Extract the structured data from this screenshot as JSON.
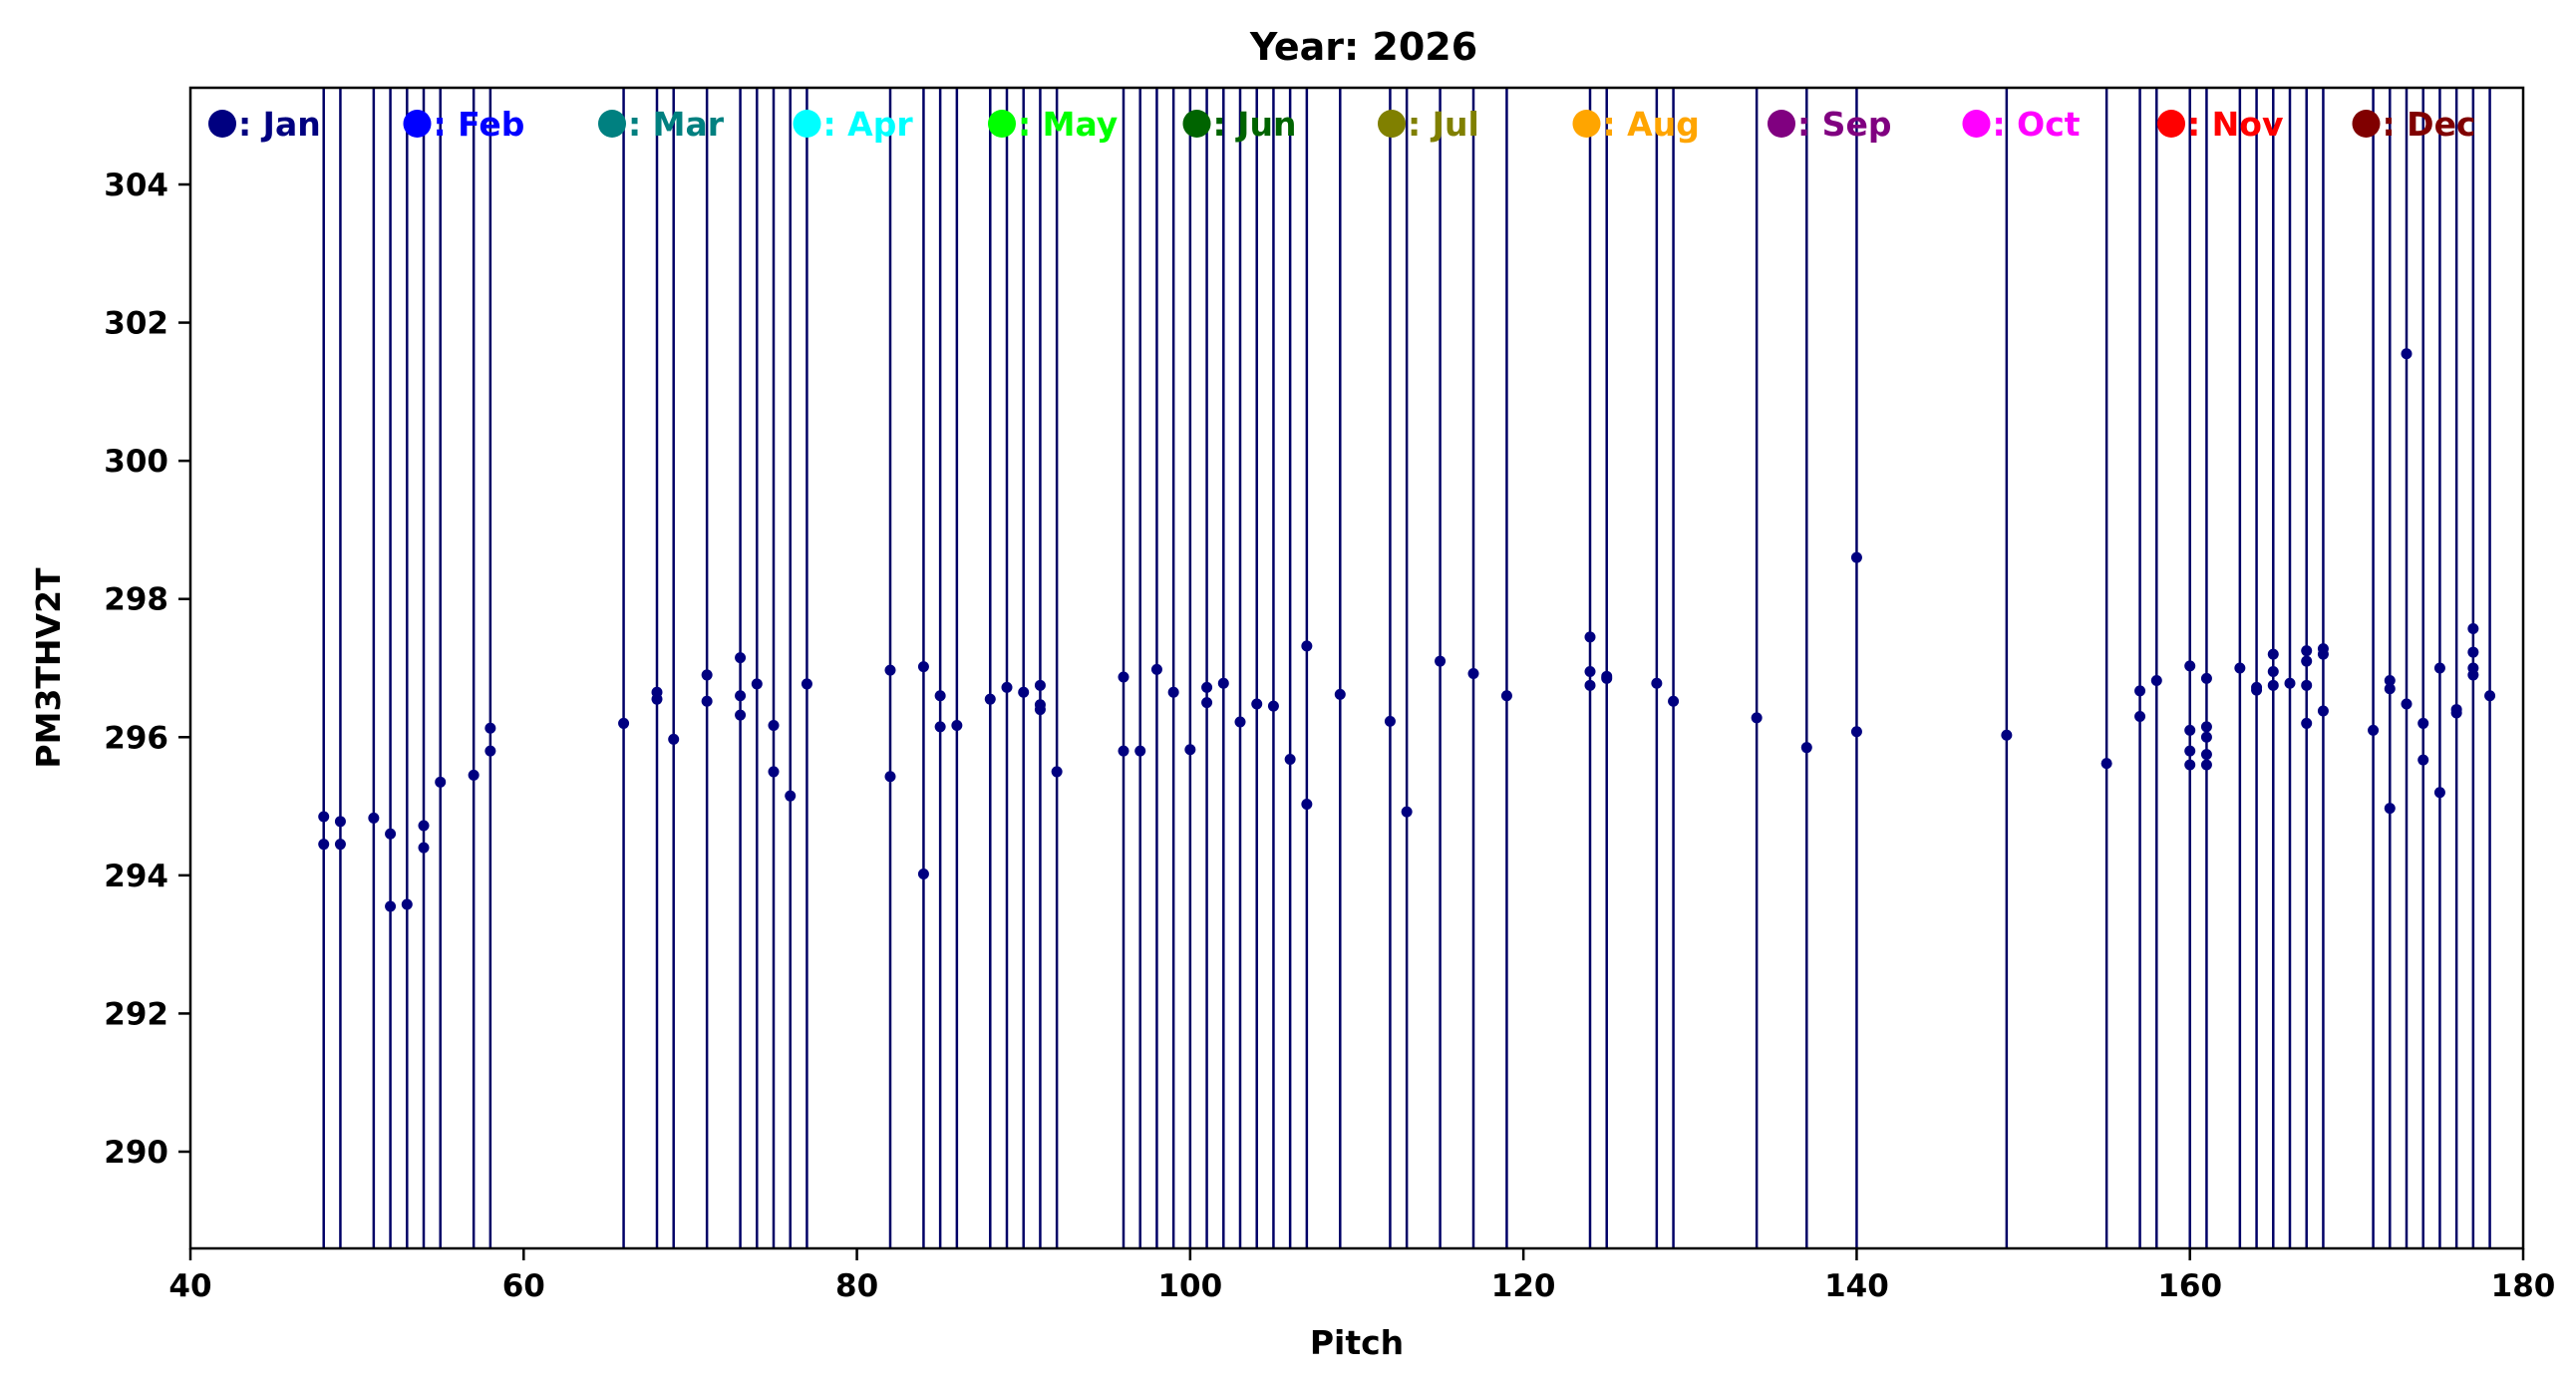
{
  "chart_data": {
    "type": "scatter",
    "title": "Year: 2026",
    "xlabel": "Pitch",
    "ylabel": "PM3THV2T",
    "xlim": [
      40,
      180
    ],
    "ylim": [
      288.6,
      305.4
    ],
    "xticks": [
      40,
      60,
      80,
      100,
      120,
      140,
      160,
      180
    ],
    "yticks": [
      290,
      292,
      294,
      296,
      298,
      300,
      302,
      304
    ],
    "grid": false,
    "legend_placement": "top, horizontal",
    "line_color": "#000066",
    "point_color": "#000080",
    "legend": [
      {
        "label": "Jan",
        "color": "#000080"
      },
      {
        "label": "Feb",
        "color": "#0000ff"
      },
      {
        "label": "Mar",
        "color": "#008080"
      },
      {
        "label": "Apr",
        "color": "#00ffff"
      },
      {
        "label": "May",
        "color": "#00ff00"
      },
      {
        "label": "Jun",
        "color": "#006400"
      },
      {
        "label": "Jul",
        "color": "#808000"
      },
      {
        "label": "Aug",
        "color": "#ffa500"
      },
      {
        "label": "Sep",
        "color": "#800080"
      },
      {
        "label": "Oct",
        "color": "#ff00ff"
      },
      {
        "label": "Nov",
        "color": "#ff0000"
      },
      {
        "label": "Dec",
        "color": "#800000"
      }
    ],
    "vertical_lines_x": [
      48,
      49,
      51,
      52,
      53,
      54,
      55,
      57,
      58,
      66,
      68,
      69,
      71,
      73,
      74,
      75,
      76,
      77,
      82,
      84,
      85,
      86,
      88,
      89,
      90,
      91,
      92,
      96,
      97,
      98,
      99,
      100,
      101,
      102,
      103,
      104,
      105,
      106,
      107,
      109,
      112,
      113,
      115,
      117,
      119,
      124,
      125,
      128,
      129,
      134,
      137,
      140,
      149,
      155,
      157,
      158,
      160,
      161,
      163,
      164,
      165,
      166,
      167,
      168,
      171,
      172,
      173,
      174,
      175,
      176,
      177,
      178
    ],
    "series": [
      {
        "month": "Jan",
        "x": [
          48,
          48,
          49,
          49,
          51,
          52,
          52,
          53,
          54,
          54,
          55,
          57,
          58,
          58,
          66,
          68,
          68,
          69,
          71,
          71,
          73,
          73,
          73,
          74,
          75,
          75,
          76,
          77,
          82,
          82,
          84,
          84,
          85,
          85,
          86,
          88,
          89,
          90,
          91,
          91,
          91,
          92,
          96,
          96,
          97,
          98,
          99,
          100,
          101,
          101,
          102,
          103,
          104,
          105,
          106,
          107,
          107,
          109,
          112,
          113,
          115,
          117,
          119,
          124,
          124,
          124,
          125,
          125,
          128,
          129,
          134,
          137,
          140,
          140,
          149,
          155,
          157,
          157,
          158,
          160,
          160,
          160,
          160,
          161,
          161,
          161,
          161,
          161,
          163,
          164,
          164,
          165,
          165,
          165,
          166,
          167,
          167,
          167,
          167,
          168,
          168,
          168,
          171,
          172,
          172,
          172,
          173,
          173,
          174,
          174,
          175,
          175,
          176,
          176,
          177,
          177,
          177,
          177,
          178
        ],
        "y": [
          294.85,
          294.45,
          294.78,
          294.45,
          294.83,
          294.6,
          293.55,
          293.58,
          294.72,
          294.4,
          295.35,
          295.45,
          296.13,
          295.8,
          296.2,
          296.65,
          296.55,
          295.97,
          296.9,
          296.52,
          297.15,
          296.6,
          296.32,
          296.77,
          296.17,
          295.5,
          295.15,
          296.77,
          296.97,
          295.43,
          297.02,
          294.02,
          296.6,
          296.15,
          296.17,
          296.55,
          296.72,
          296.65,
          296.75,
          296.47,
          296.4,
          295.5,
          296.87,
          295.8,
          295.8,
          296.98,
          296.65,
          295.82,
          296.72,
          296.5,
          296.78,
          296.22,
          296.48,
          296.45,
          295.68,
          297.32,
          295.03,
          296.62,
          296.23,
          294.92,
          297.1,
          296.92,
          296.6,
          297.45,
          296.95,
          296.75,
          296.88,
          296.85,
          296.78,
          296.52,
          296.28,
          295.85,
          298.6,
          296.08,
          296.03,
          295.62,
          296.67,
          296.3,
          296.82,
          297.03,
          296.1,
          295.8,
          295.6,
          296.85,
          296.15,
          296.0,
          295.75,
          295.6,
          297.0,
          296.72,
          296.68,
          297.2,
          296.95,
          296.75,
          296.78,
          297.25,
          297.1,
          296.75,
          296.2,
          297.28,
          297.2,
          296.38,
          296.1,
          296.82,
          296.7,
          294.97,
          301.55,
          296.48,
          296.2,
          295.67,
          297.0,
          295.2,
          296.4,
          296.35,
          297.57,
          297.23,
          297.0,
          296.9,
          296.6
        ]
      }
    ]
  }
}
